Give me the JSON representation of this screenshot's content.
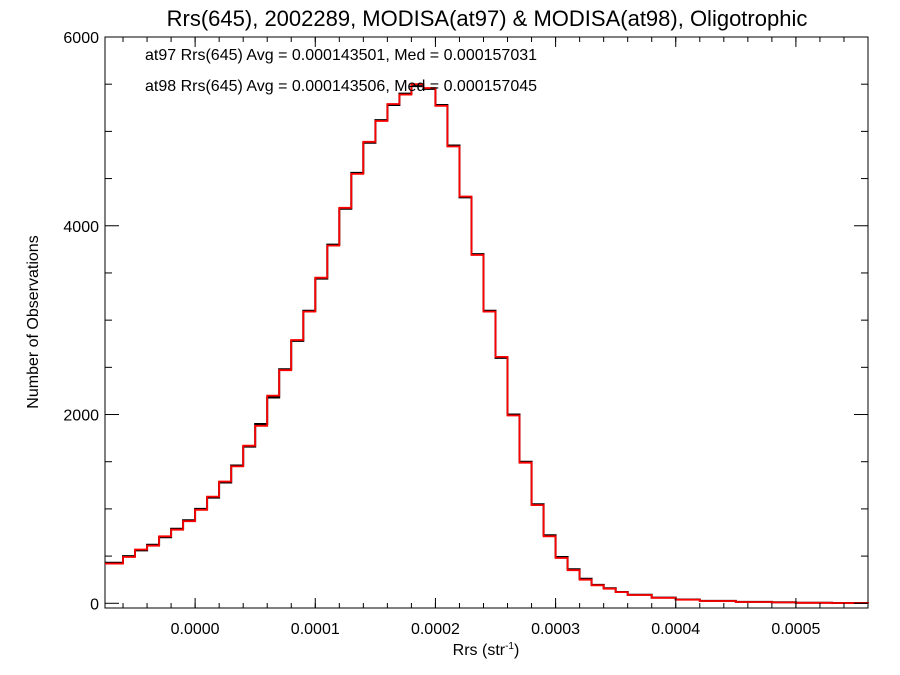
{
  "chart_data": {
    "type": "line",
    "style": "histogram-step",
    "title": "Rrs(645), 2002289, MODISA(at97) & MODISA(at98), Oligotrophic",
    "xlabel_main": "Rrs (str",
    "xlabel_sup": "-1",
    "xlabel_close": ")",
    "ylabel": "Number of Observations",
    "xlim": [
      -7.5e-05,
      0.00056
    ],
    "ylim": [
      -50,
      6000
    ],
    "x_ticks": [
      0.0,
      0.0001,
      0.0002,
      0.0003,
      0.0004,
      0.0005
    ],
    "x_tick_labels": [
      "0.0000",
      "0.0001",
      "0.0002",
      "0.0003",
      "0.0004",
      "0.0005"
    ],
    "y_ticks": [
      0,
      2000,
      4000,
      6000
    ],
    "y_tick_labels": [
      "0",
      "2000",
      "4000",
      "6000"
    ],
    "grid": false,
    "legend_position": "top-left",
    "annotations": [
      {
        "text": "at97 Rrs(645) Avg = 0.000143501, Med = 0.000157031",
        "color": "#000000"
      },
      {
        "text": "at98 Rrs(645) Avg = 0.000143506, Med = 0.000157045",
        "color": "#ff0000"
      }
    ],
    "series": [
      {
        "color": "#000000",
        "x": [
          -7.5e-05,
          -6e-05,
          -5e-05,
          -4e-05,
          -3e-05,
          -2e-05,
          -1e-05,
          0.0,
          1e-05,
          2e-05,
          3e-05,
          4e-05,
          5e-05,
          6e-05,
          7e-05,
          8e-05,
          9e-05,
          0.0001,
          0.00011,
          0.00012,
          0.00013,
          0.00014,
          0.00015,
          0.00016,
          0.00017,
          0.00018,
          0.00019,
          0.0002,
          0.00021,
          0.00022,
          0.00023,
          0.00024,
          0.00025,
          0.00026,
          0.00027,
          0.00028,
          0.00029,
          0.0003,
          0.00031,
          0.00032,
          0.00033,
          0.00034,
          0.00035,
          0.00036,
          0.00038,
          0.0004,
          0.00042,
          0.00045,
          0.00048,
          0.0005,
          0.00053,
          0.00056
        ],
        "values": [
          430,
          500,
          560,
          620,
          700,
          790,
          880,
          1000,
          1120,
          1280,
          1460,
          1660,
          1900,
          2180,
          2480,
          2780,
          3100,
          3440,
          3800,
          4180,
          4560,
          4880,
          5120,
          5280,
          5400,
          5480,
          5450,
          5280,
          4850,
          4300,
          3700,
          3100,
          2600,
          2000,
          1500,
          1050,
          720,
          490,
          360,
          260,
          195,
          160,
          120,
          90,
          60,
          40,
          25,
          15,
          10,
          6,
          3,
          2
        ]
      },
      {
        "color": "#ff0000",
        "x": [
          -7.5e-05,
          -6e-05,
          -5e-05,
          -4e-05,
          -3e-05,
          -2e-05,
          -1e-05,
          0.0,
          1e-05,
          2e-05,
          3e-05,
          4e-05,
          5e-05,
          6e-05,
          7e-05,
          8e-05,
          9e-05,
          0.0001,
          0.00011,
          0.00012,
          0.00013,
          0.00014,
          0.00015,
          0.00016,
          0.00017,
          0.00018,
          0.00019,
          0.0002,
          0.00021,
          0.00022,
          0.00023,
          0.00024,
          0.00025,
          0.00026,
          0.00027,
          0.00028,
          0.00029,
          0.0003,
          0.00031,
          0.00032,
          0.00033,
          0.00034,
          0.00035,
          0.00036,
          0.00038,
          0.0004,
          0.00042,
          0.00045,
          0.00048,
          0.0005,
          0.00053,
          0.00056
        ],
        "values": [
          420,
          490,
          570,
          610,
          710,
          780,
          870,
          990,
          1130,
          1290,
          1450,
          1670,
          1880,
          2200,
          2470,
          2790,
          3090,
          3450,
          3790,
          4190,
          4550,
          4890,
          5110,
          5290,
          5390,
          5500,
          5460,
          5270,
          4840,
          4310,
          3690,
          3090,
          2610,
          1990,
          1490,
          1040,
          710,
          480,
          350,
          250,
          190,
          155,
          118,
          88,
          58,
          38,
          24,
          14,
          9,
          5,
          3,
          2
        ]
      }
    ]
  }
}
